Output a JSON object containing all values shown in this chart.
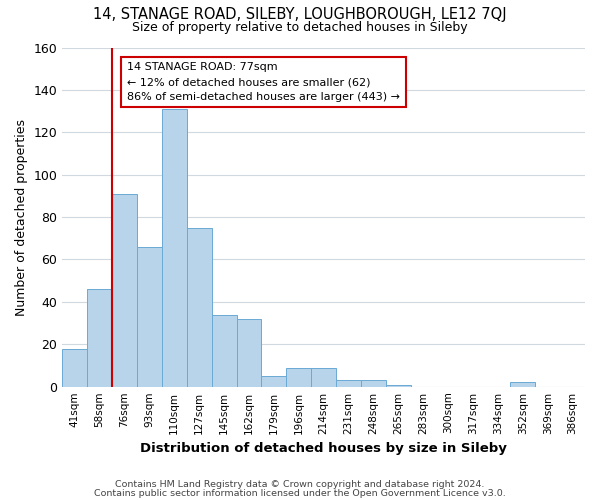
{
  "title": "14, STANAGE ROAD, SILEBY, LOUGHBOROUGH, LE12 7QJ",
  "subtitle": "Size of property relative to detached houses in Sileby",
  "xlabel": "Distribution of detached houses by size in Sileby",
  "ylabel": "Number of detached properties",
  "footer_line1": "Contains HM Land Registry data © Crown copyright and database right 2024.",
  "footer_line2": "Contains public sector information licensed under the Open Government Licence v3.0.",
  "bins": [
    "41sqm",
    "58sqm",
    "76sqm",
    "93sqm",
    "110sqm",
    "127sqm",
    "145sqm",
    "162sqm",
    "179sqm",
    "196sqm",
    "214sqm",
    "231sqm",
    "248sqm",
    "265sqm",
    "283sqm",
    "300sqm",
    "317sqm",
    "334sqm",
    "352sqm",
    "369sqm",
    "386sqm"
  ],
  "values": [
    18,
    46,
    91,
    66,
    131,
    75,
    34,
    32,
    5,
    9,
    9,
    3,
    3,
    1,
    0,
    0,
    0,
    0,
    2,
    0,
    0
  ],
  "bar_color": "#b8d4ea",
  "bar_edge_color": "#6aaad4",
  "highlight_line_color": "#cc0000",
  "annotation_line1": "14 STANAGE ROAD: 77sqm",
  "annotation_line2": "← 12% of detached houses are smaller (62)",
  "annotation_line3": "86% of semi-detached houses are larger (443) →",
  "annotation_box_edge_color": "#cc0000",
  "ylim": [
    0,
    160
  ],
  "yticks": [
    0,
    20,
    40,
    60,
    80,
    100,
    120,
    140,
    160
  ],
  "background_color": "#ffffff",
  "grid_color": "#d0d8e0"
}
